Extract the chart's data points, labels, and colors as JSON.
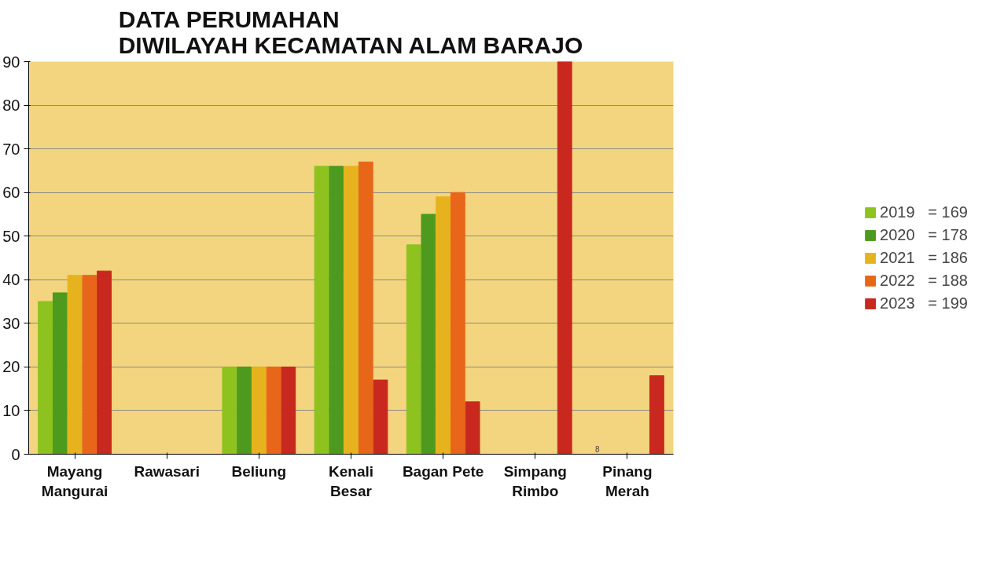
{
  "chart_data": {
    "type": "bar",
    "title": "DATA PERUMAHAN\nDIWILAYAH KECAMATAN ALAM BARAJO",
    "categories": [
      "Mayang\nMangurai",
      "Rawasari",
      "Beliung",
      "Kenali\nBesar",
      "Bagan Pete",
      "Simpang\nRimbo",
      "Pinang\nMerah"
    ],
    "series": [
      {
        "name": "2019   = 169",
        "color": "#8dc21f",
        "values": [
          35,
          0,
          20,
          66,
          48,
          0,
          0
        ]
      },
      {
        "name": "2020   = 178",
        "color": "#4e9a1e",
        "values": [
          37,
          0,
          20,
          66,
          55,
          0,
          0
        ]
      },
      {
        "name": "2021   = 186",
        "color": "#e6b31e",
        "values": [
          41,
          0,
          20,
          66,
          59,
          0,
          0
        ]
      },
      {
        "name": "2022   = 188",
        "color": "#e8661a",
        "values": [
          41,
          0,
          20,
          67,
          60,
          0,
          0
        ]
      },
      {
        "name": "2023   = 199",
        "color": "#c8281e",
        "values": [
          42,
          0,
          20,
          17,
          12,
          90,
          18
        ]
      }
    ],
    "ylim": [
      0,
      90
    ],
    "yticks": [
      0,
      10,
      20,
      30,
      40,
      50,
      60,
      70,
      80,
      90
    ],
    "grid": "y",
    "legend": "right",
    "annotations": [
      "8"
    ]
  }
}
